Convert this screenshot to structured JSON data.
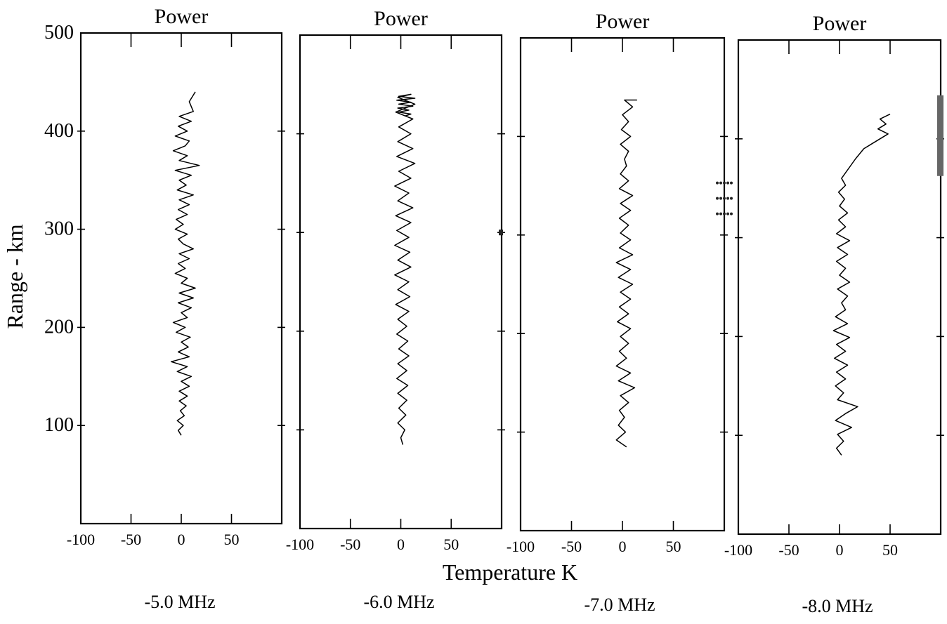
{
  "chart_data": {
    "type": "line",
    "shared_ylabel": "Range - km",
    "shared_xlabel": "Temperature K",
    "yticks": [
      100,
      200,
      300,
      400,
      500
    ],
    "ylim": [
      0,
      500
    ],
    "xlim": [
      -100,
      100
    ],
    "xtick_labels": [
      "-100",
      "-50",
      "0",
      "50"
    ],
    "grid": false,
    "panels": [
      {
        "title": "Power",
        "caption": "-5.0 MHz",
        "x": [
          0,
          -3,
          2,
          -4,
          3,
          -1,
          5,
          -2,
          6,
          -2,
          8,
          0,
          10,
          -4,
          6,
          -10,
          8,
          -3,
          7,
          0,
          9,
          -5,
          4,
          -8,
          6,
          0,
          10,
          -3,
          12,
          -2,
          14,
          0,
          6,
          -6,
          4,
          -3,
          8,
          -2,
          12,
          2,
          -3,
          6,
          -6,
          2,
          -5,
          6,
          -3,
          8,
          -2,
          12,
          -4,
          5,
          -2,
          10,
          -6,
          18,
          -2,
          6,
          -8,
          4,
          8,
          -6,
          6,
          -3,
          10,
          -2,
          12,
          8,
          14
        ],
        "y": [
          90,
          95,
          100,
          105,
          110,
          115,
          120,
          125,
          130,
          135,
          140,
          145,
          150,
          155,
          160,
          165,
          170,
          175,
          180,
          185,
          190,
          195,
          200,
          205,
          210,
          215,
          220,
          225,
          230,
          235,
          240,
          245,
          250,
          255,
          260,
          265,
          270,
          275,
          280,
          285,
          290,
          295,
          300,
          305,
          310,
          315,
          320,
          325,
          330,
          335,
          340,
          345,
          350,
          355,
          360,
          365,
          370,
          375,
          380,
          385,
          390,
          395,
          400,
          405,
          410,
          415,
          420,
          430,
          440
        ]
      },
      {
        "title": "Power",
        "caption": "-6.0 MHz",
        "x": [
          2,
          0,
          4,
          -3,
          5,
          -2,
          6,
          -3,
          7,
          -4,
          6,
          -3,
          8,
          -2,
          7,
          -4,
          6,
          -3,
          8,
          -5,
          9,
          -3,
          8,
          -6,
          10,
          -3,
          9,
          -6,
          8,
          -4,
          10,
          -5,
          12,
          -3,
          8,
          -6,
          10,
          -2,
          14,
          -4,
          12,
          -3,
          10,
          -2,
          12,
          -5,
          14,
          -3,
          10,
          -2,
          14,
          -4,
          10,
          -2,
          12,
          -3,
          8,
          -2,
          10,
          4
        ],
        "y": [
          85,
          92,
          100,
          107,
          115,
          122,
          130,
          137,
          145,
          152,
          160,
          167,
          175,
          182,
          190,
          197,
          205,
          212,
          220,
          227,
          235,
          242,
          250,
          257,
          265,
          272,
          280,
          287,
          295,
          302,
          310,
          317,
          325,
          332,
          340,
          347,
          355,
          362,
          370,
          377,
          385,
          392,
          400,
          407,
          415,
          422,
          430,
          437,
          440,
          438,
          436,
          434,
          432,
          430,
          428,
          426,
          424,
          422,
          420,
          418
        ]
      },
      {
        "title": "Power",
        "caption": "-7.0 MHz",
        "x": [
          4,
          -6,
          3,
          -4,
          2,
          -3,
          6,
          -2,
          12,
          -4,
          8,
          -6,
          4,
          -3,
          6,
          -2,
          8,
          -5,
          6,
          -3,
          8,
          -2,
          10,
          -4,
          8,
          -6,
          10,
          -3,
          8,
          -2,
          6,
          -3,
          8,
          -2,
          10,
          -3,
          6,
          -2,
          4,
          2,
          6,
          -2,
          8,
          -1,
          6,
          0,
          10,
          2,
          14,
          3,
          8,
          2,
          10,
          4,
          8,
          2
        ],
        "y": [
          85,
          92,
          100,
          107,
          115,
          122,
          130,
          137,
          145,
          152,
          160,
          167,
          175,
          182,
          190,
          197,
          205,
          212,
          220,
          227,
          235,
          242,
          250,
          257,
          265,
          272,
          280,
          287,
          295,
          302,
          310,
          317,
          325,
          332,
          340,
          347,
          355,
          362,
          370,
          377,
          385,
          392,
          400,
          407,
          415,
          422,
          430,
          437,
          437,
          437,
          437,
          437,
          437,
          437,
          437,
          437
        ]
      },
      {
        "title": "Power",
        "caption": "-8.0 MHz",
        "x": [
          2,
          -3,
          4,
          -2,
          12,
          -4,
          6,
          18,
          -2,
          4,
          -4,
          6,
          -3,
          8,
          -5,
          6,
          -3,
          10,
          -6,
          8,
          -4,
          6,
          2,
          8,
          -2,
          10,
          0,
          6,
          -3,
          8,
          -2,
          10,
          -3,
          6,
          -1,
          8,
          0,
          5,
          -1,
          6,
          2,
          16,
          24,
          32,
          40,
          48,
          38,
          46,
          40,
          50
        ],
        "y": [
          80,
          87,
          94,
          101,
          108,
          115,
          122,
          129,
          136,
          143,
          150,
          157,
          164,
          171,
          178,
          185,
          192,
          199,
          206,
          213,
          220,
          227,
          234,
          241,
          248,
          255,
          262,
          269,
          276,
          283,
          290,
          297,
          304,
          311,
          318,
          325,
          332,
          339,
          346,
          353,
          360,
          380,
          390,
          395,
          400,
          405,
          410,
          415,
          420,
          425
        ]
      }
    ],
    "annotations": [
      {
        "panel": 1,
        "x": 100,
        "y": 300
      },
      {
        "panel": 2,
        "x": 100,
        "y": 340
      },
      {
        "panel": 3,
        "x": 100,
        "y": 405
      }
    ]
  }
}
